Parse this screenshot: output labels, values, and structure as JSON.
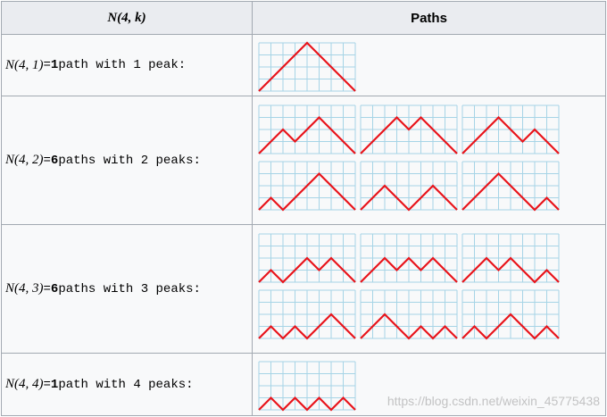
{
  "header": {
    "notation": "N(4, k)",
    "paths": "Paths"
  },
  "rows": [
    {
      "notation": "N(4, 1)",
      "equals": "=",
      "count": "1",
      "description": "path with 1 peak:"
    },
    {
      "notation": "N(4, 2)",
      "equals": "=",
      "count": "6",
      "description": "paths with 2 peaks:"
    },
    {
      "notation": "N(4, 3)",
      "equals": "=",
      "count": "6",
      "description": "paths with 3 peaks:"
    },
    {
      "notation": "N(4, 4)",
      "equals": "=",
      "count": "1",
      "description": "path with 4 peaks:"
    }
  ],
  "watermark": "https://blog.csdn.net/weixin_45775438"
}
